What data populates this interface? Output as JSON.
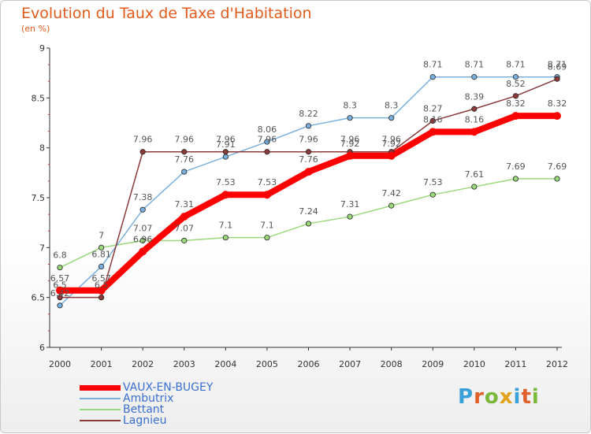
{
  "title": "Evolution du Taux de Taxe d'Habitation",
  "subtitle": "(en %)",
  "logo_text": "Proxiti",
  "chart_data": {
    "type": "line",
    "title": "Evolution du Taux de Taxe d'Habitation",
    "subtitle": "(en %)",
    "xlabel": "",
    "ylabel": "",
    "x": [
      2000,
      2001,
      2002,
      2003,
      2004,
      2005,
      2006,
      2007,
      2008,
      2009,
      2010,
      2011,
      2012
    ],
    "ylim": [
      6,
      9
    ],
    "yticks": [
      6,
      6.5,
      7,
      7.5,
      8,
      8.5,
      9
    ],
    "ytick_labels": [
      "6",
      "6.5",
      "7",
      "7.5",
      "8",
      "8.5",
      "9"
    ],
    "grid": false,
    "legend_position": "bottom-left",
    "series": [
      {
        "name": "VAUX-EN-BUGEY",
        "color": "#ff0000",
        "values": [
          6.57,
          6.57,
          6.96,
          7.31,
          7.53,
          7.53,
          7.76,
          7.92,
          7.92,
          8.16,
          8.16,
          8.32,
          8.32
        ],
        "labels": [
          "6.57",
          "6.57",
          "6.96",
          "7.31",
          "7.53",
          "7.53",
          "7.76",
          "7.92",
          "7.92",
          "8.16",
          "8.16",
          "8.32",
          "8.32"
        ]
      },
      {
        "name": "Ambutrix",
        "color": "#7ab0e0",
        "values": [
          6.42,
          6.81,
          7.38,
          7.76,
          7.91,
          8.06,
          8.22,
          8.3,
          8.3,
          8.71,
          8.71,
          8.71,
          8.71
        ],
        "labels": [
          "6.42",
          "6.81",
          "7.38",
          "7.76",
          "7.91",
          "8.06",
          "8.22",
          "8.3",
          "8.3",
          "8.71",
          "8.71",
          "8.71",
          "8.71"
        ]
      },
      {
        "name": "Bettant",
        "color": "#9ad87a",
        "values": [
          6.8,
          7,
          7.07,
          7.07,
          7.1,
          7.1,
          7.24,
          7.31,
          7.42,
          7.53,
          7.61,
          7.69,
          7.69
        ],
        "labels": [
          "6.8",
          "7",
          "7.07",
          "7.07",
          "7.1",
          "7.1",
          "7.24",
          "7.31",
          "7.42",
          "7.53",
          "7.61",
          "7.69",
          "7.69"
        ]
      },
      {
        "name": "Lagnieu",
        "color": "#8c3a3a",
        "values": [
          6.5,
          6.5,
          7.96,
          7.96,
          7.96,
          7.96,
          7.96,
          7.96,
          7.96,
          8.27,
          8.39,
          8.52,
          8.69
        ],
        "labels": [
          "6.5",
          "6.5",
          "7.96",
          "7.96",
          "7.96",
          "7.96",
          "7.96",
          "7.96",
          "7.96",
          "8.27",
          "8.39",
          "8.52",
          "8.69"
        ]
      }
    ]
  }
}
